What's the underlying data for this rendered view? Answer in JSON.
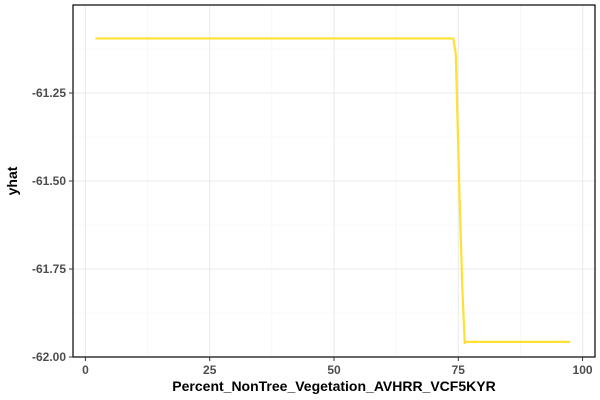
{
  "chart_data": {
    "type": "line",
    "xlabel": "Percent_NonTree_Vegetation_AVHRR_VCF5KYR",
    "ylabel": "yhat",
    "xlim": [
      -2.5,
      102.5
    ],
    "ylim": [
      -62.0,
      -61.0
    ],
    "x_ticks": [
      0,
      25,
      50,
      75,
      100
    ],
    "x_tick_labels": [
      "0",
      "25",
      "50",
      "75",
      "100"
    ],
    "y_ticks": [
      -61.25,
      -61.5,
      -61.75,
      -62.0
    ],
    "y_tick_labels": [
      "-61.25",
      "-61.50",
      "-61.75",
      "-62.00"
    ],
    "grid": true,
    "line_color": "#FFE033",
    "series": [
      {
        "x": [
          2,
          74,
          74.5,
          75.2,
          75.8,
          76.3,
          76.6,
          97.5
        ],
        "y": [
          -61.095,
          -61.095,
          -61.14,
          -61.52,
          -61.8,
          -61.96,
          -61.957,
          -61.957
        ]
      }
    ]
  }
}
